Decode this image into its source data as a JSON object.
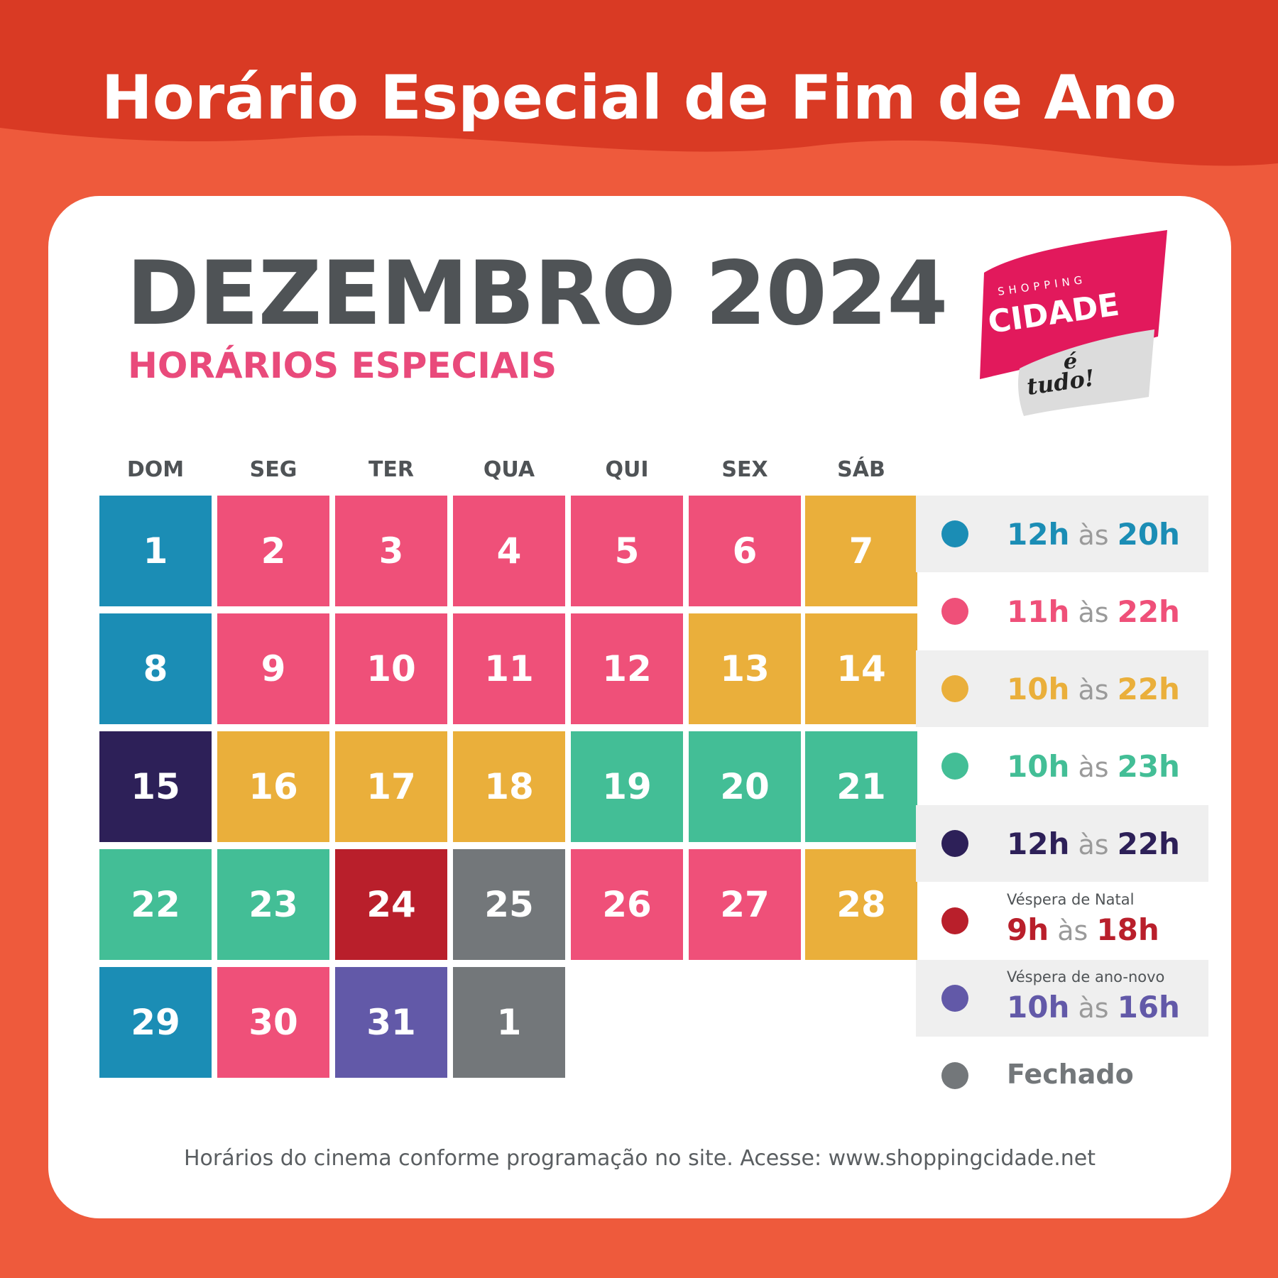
{
  "headline": "Horário Especial de Fim de Ano",
  "month_title": "DEZEMBRO 2024",
  "subtitle": "HORÁRIOS ESPECIAIS",
  "logo": {
    "top": "SHOPPING",
    "main": "CIDADE",
    "tag1": "é",
    "tag2": "tudo!"
  },
  "weekdays": [
    "DOM",
    "SEG",
    "TER",
    "QUA",
    "QUI",
    "SEX",
    "SÁB"
  ],
  "colors": {
    "blue": "#1b8db5",
    "pink": "#ef5079",
    "yellow": "#eaaf3b",
    "green": "#43be96",
    "navy": "#2d2058",
    "red": "#b91f2b",
    "purple": "#6259a8",
    "gray": "#73777a"
  },
  "calendar": [
    [
      {
        "day": "1",
        "color": "blue"
      },
      {
        "day": "2",
        "color": "pink"
      },
      {
        "day": "3",
        "color": "pink"
      },
      {
        "day": "4",
        "color": "pink"
      },
      {
        "day": "5",
        "color": "pink"
      },
      {
        "day": "6",
        "color": "pink"
      },
      {
        "day": "7",
        "color": "yellow"
      }
    ],
    [
      {
        "day": "8",
        "color": "blue"
      },
      {
        "day": "9",
        "color": "pink"
      },
      {
        "day": "10",
        "color": "pink"
      },
      {
        "day": "11",
        "color": "pink"
      },
      {
        "day": "12",
        "color": "pink"
      },
      {
        "day": "13",
        "color": "yellow"
      },
      {
        "day": "14",
        "color": "yellow"
      }
    ],
    [
      {
        "day": "15",
        "color": "navy"
      },
      {
        "day": "16",
        "color": "yellow"
      },
      {
        "day": "17",
        "color": "yellow"
      },
      {
        "day": "18",
        "color": "yellow"
      },
      {
        "day": "19",
        "color": "green"
      },
      {
        "day": "20",
        "color": "green"
      },
      {
        "day": "21",
        "color": "green"
      }
    ],
    [
      {
        "day": "22",
        "color": "green"
      },
      {
        "day": "23",
        "color": "green"
      },
      {
        "day": "24",
        "color": "red"
      },
      {
        "day": "25",
        "color": "gray"
      },
      {
        "day": "26",
        "color": "pink"
      },
      {
        "day": "27",
        "color": "pink"
      },
      {
        "day": "28",
        "color": "yellow"
      }
    ],
    [
      {
        "day": "29",
        "color": "blue"
      },
      {
        "day": "30",
        "color": "pink"
      },
      {
        "day": "31",
        "color": "purple"
      },
      {
        "day": "1",
        "color": "gray"
      }
    ]
  ],
  "legend": [
    {
      "color": "blue",
      "start": "12h",
      "sep": "às",
      "end": "20h",
      "note": ""
    },
    {
      "color": "pink",
      "start": "11h",
      "sep": "às",
      "end": "22h",
      "note": ""
    },
    {
      "color": "yellow",
      "start": "10h",
      "sep": "às",
      "end": "22h",
      "note": ""
    },
    {
      "color": "green",
      "start": "10h",
      "sep": "às",
      "end": "23h",
      "note": ""
    },
    {
      "color": "navy",
      "start": "12h",
      "sep": "às",
      "end": "22h",
      "note": ""
    },
    {
      "color": "red",
      "start": "9h",
      "sep": "às",
      "end": "18h",
      "note": "Véspera de Natal"
    },
    {
      "color": "purple",
      "start": "10h",
      "sep": "às",
      "end": "16h",
      "note": "Véspera de ano-novo"
    },
    {
      "color": "gray",
      "label": "Fechado"
    }
  ],
  "footer": "Horários do cinema conforme programação no site. Acesse: www.shoppingcidade.net"
}
